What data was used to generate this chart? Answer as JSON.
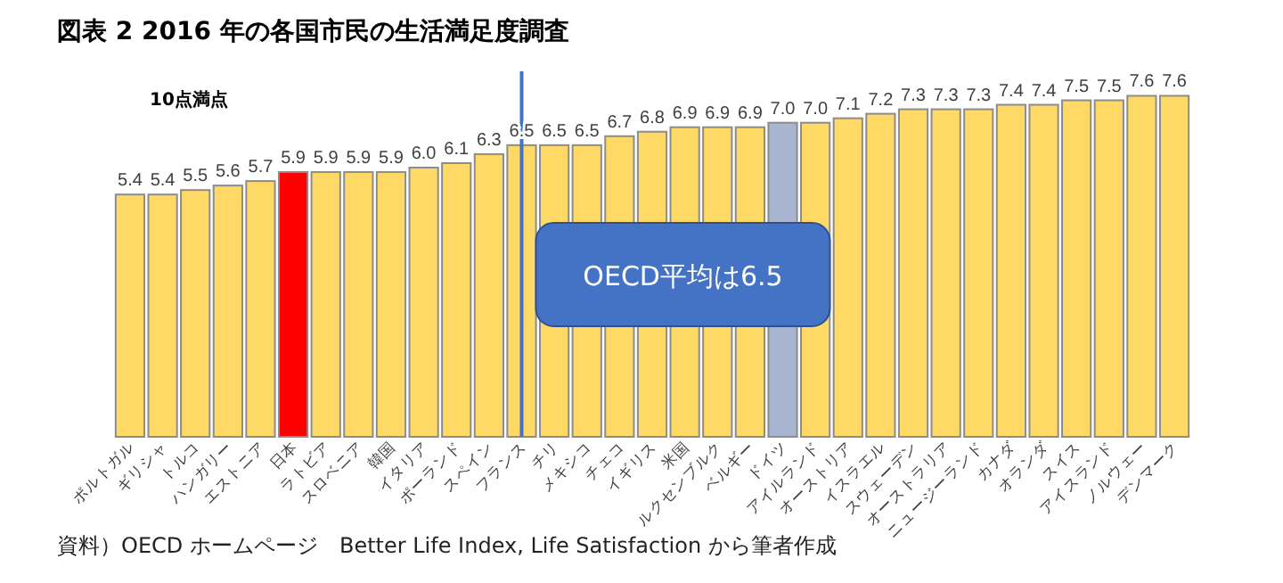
{
  "chart_data": {
    "type": "bar",
    "title": "図表 2 2016 年の各国市民の生活満足度調査",
    "subtitle": "10点満点",
    "categories": [
      "ポルトガル",
      "ギリシャ",
      "トルコ",
      "ハンガリー",
      "エストニア",
      "日本",
      "ラトビア",
      "スロベニア",
      "韓国",
      "イタリア",
      "ポーランド",
      "スペイン",
      "フランス",
      "チリ",
      "メキシコ",
      "チェコ",
      "イギリス",
      "米国",
      "ルクセンブルク",
      "ベルギー",
      "ドイツ",
      "アイルランド",
      "オーストリア",
      "イスラエル",
      "スウェーデン",
      "オーストラリア",
      "ニュージーランド",
      "カナダ",
      "オランダ",
      "スイス",
      "アイスランド",
      "ノルウェー",
      "デンマーク"
    ],
    "values": [
      5.4,
      5.4,
      5.5,
      5.6,
      5.7,
      5.9,
      5.9,
      5.9,
      5.9,
      6.0,
      6.1,
      6.3,
      6.5,
      6.5,
      6.5,
      6.7,
      6.8,
      6.9,
      6.9,
      6.9,
      7.0,
      7.0,
      7.1,
      7.2,
      7.3,
      7.3,
      7.3,
      7.4,
      7.4,
      7.5,
      7.5,
      7.6,
      7.6
    ],
    "colors": [
      "#ffd966",
      "#ffd966",
      "#ffd966",
      "#ffd966",
      "#ffd966",
      "#ff0000",
      "#ffd966",
      "#ffd966",
      "#ffd966",
      "#ffd966",
      "#ffd966",
      "#ffd966",
      "#ffd966",
      "#ffd966",
      "#ffd966",
      "#ffd966",
      "#ffd966",
      "#ffd966",
      "#ffd966",
      "#ffd966",
      "#a9b4d0",
      "#ffd966",
      "#ffd966",
      "#ffd966",
      "#ffd966",
      "#ffd966",
      "#ffd966",
      "#ffd966",
      "#ffd966",
      "#ffd966",
      "#ffd966",
      "#ffd966",
      "#ffd966"
    ],
    "value_labels": [
      "5.4",
      "5.4",
      "5.5",
      "5.6",
      "5.7",
      "5.9",
      "5.9",
      "5.9",
      "5.9",
      "6.0",
      "6.1",
      "6.3",
      "6.5",
      "6.5",
      "6.5",
      "6.7",
      "6.8",
      "6.9",
      "6.9",
      "6.9",
      "7.0",
      "7.0",
      "7.1",
      "7.2",
      "7.3",
      "7.3",
      "7.3",
      "7.4",
      "7.4",
      "7.5",
      "7.5",
      "7.6",
      "7.6"
    ],
    "ref_lines": [
      {
        "axis": "x",
        "value": "フランス",
        "label": "OECD平均は6.5",
        "color": "#4472c4"
      }
    ],
    "annotations": [
      "資料）OECD ホームページ　Better Life Index, Life Satisfaction から筆者作成"
    ]
  }
}
